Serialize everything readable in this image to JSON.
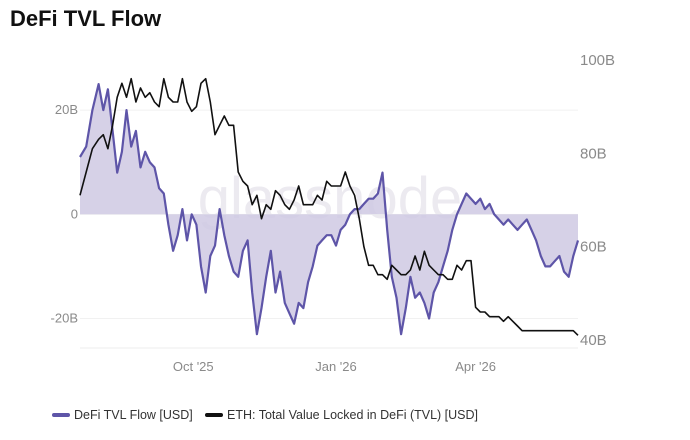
{
  "title": "DeFi TVL Flow",
  "watermark": "glassnode",
  "legend": {
    "flow_label": "DeFi TVL Flow [USD]",
    "tvl_label": "ETH: Total Value Locked in DeFi (TVL) [USD]"
  },
  "colors": {
    "flow": "#5e55a8",
    "flow_fill": "#cfc9e3",
    "tvl": "#111111"
  },
  "chart_data": {
    "type": "line",
    "title": "DeFi TVL Flow",
    "x_ticks": [
      "Oct '25",
      "Jan '26",
      "Apr '26"
    ],
    "y_left_ticks": [
      "20B",
      "0",
      "-20B"
    ],
    "y_left_values": [
      20,
      0,
      -20
    ],
    "y_left_range": [
      -27,
      30
    ],
    "y_right_ticks": [
      "100B",
      "80B",
      "60B",
      "40B"
    ],
    "y_right_values": [
      100,
      80,
      60,
      40
    ],
    "y_right_range": [
      40,
      100
    ],
    "units": "billion USD",
    "legend_position": "bottom",
    "series": [
      {
        "name": "DeFi TVL Flow [USD]",
        "axis": "left",
        "style": "area",
        "x": [
          "2025-07-20",
          "2025-07-24",
          "2025-07-28",
          "2025-08-01",
          "2025-08-04",
          "2025-08-07",
          "2025-08-10",
          "2025-08-13",
          "2025-08-16",
          "2025-08-19",
          "2025-08-22",
          "2025-08-25",
          "2025-08-28",
          "2025-08-31",
          "2025-09-03",
          "2025-09-06",
          "2025-09-09",
          "2025-09-12",
          "2025-09-15",
          "2025-09-18",
          "2025-09-21",
          "2025-09-24",
          "2025-09-27",
          "2025-09-30",
          "2025-10-03",
          "2025-10-06",
          "2025-10-09",
          "2025-10-12",
          "2025-10-15",
          "2025-10-18",
          "2025-10-21",
          "2025-10-24",
          "2025-10-27",
          "2025-10-30",
          "2025-11-02",
          "2025-11-05",
          "2025-11-08",
          "2025-11-11",
          "2025-11-14",
          "2025-11-17",
          "2025-11-20",
          "2025-11-23",
          "2025-11-26",
          "2025-11-29",
          "2025-12-02",
          "2025-12-05",
          "2025-12-08",
          "2025-12-11",
          "2025-12-14",
          "2025-12-17",
          "2025-12-20",
          "2025-12-23",
          "2025-12-26",
          "2025-12-29",
          "2026-01-01",
          "2026-01-04",
          "2026-01-07",
          "2026-01-10",
          "2026-01-13",
          "2026-01-16",
          "2026-01-19",
          "2026-01-22",
          "2026-01-25",
          "2026-01-28",
          "2026-01-31",
          "2026-02-03",
          "2026-02-06",
          "2026-02-09",
          "2026-02-12",
          "2026-02-15",
          "2026-02-18",
          "2026-02-21",
          "2026-02-24",
          "2026-02-27",
          "2026-03-02",
          "2026-03-05",
          "2026-03-08",
          "2026-03-11",
          "2026-03-14",
          "2026-03-17",
          "2026-03-20",
          "2026-03-23",
          "2026-03-26",
          "2026-03-29",
          "2026-04-01",
          "2026-04-04",
          "2026-04-07",
          "2026-04-10",
          "2026-04-13",
          "2026-04-16",
          "2026-04-19",
          "2026-04-22",
          "2026-04-25",
          "2026-04-28",
          "2026-05-01",
          "2026-05-04",
          "2026-05-07",
          "2026-05-10",
          "2026-05-13",
          "2026-05-16",
          "2026-05-19",
          "2026-05-22",
          "2026-05-25",
          "2026-05-28",
          "2026-05-31",
          "2026-06-03",
          "2026-06-06"
        ],
        "values": [
          11,
          13,
          20,
          25,
          20,
          24,
          16,
          8,
          12,
          20,
          13,
          16,
          9,
          12,
          10,
          9,
          5,
          4,
          -2,
          -7,
          -4,
          1,
          -5,
          0,
          -2,
          -10,
          -15,
          -8,
          -6,
          1,
          -4,
          -8,
          -11,
          -12,
          -7,
          -5,
          -15,
          -23,
          -18,
          -12,
          -7,
          -15,
          -11,
          -17,
          -19,
          -21,
          -17,
          -18,
          -13,
          -10,
          -6,
          -5,
          -4,
          -4,
          -6,
          -3,
          -2,
          0,
          1,
          1,
          2,
          3,
          3,
          4,
          8,
          -3,
          -12,
          -16,
          -23,
          -18,
          -12,
          -16,
          -15,
          -17,
          -20,
          -15,
          -13,
          -10,
          -7,
          -3,
          0,
          2,
          4,
          3,
          2,
          3,
          1,
          2,
          0,
          -1,
          -2,
          -1,
          -2,
          -3,
          -2,
          -1,
          -3,
          -5,
          -8,
          -10,
          -10,
          -9,
          -8,
          -11,
          -12,
          -8,
          -5
        ]
      },
      {
        "name": "ETH: Total Value Locked in DeFi (TVL) [USD]",
        "axis": "right",
        "style": "line",
        "x": [
          "2025-07-20",
          "2025-07-24",
          "2025-07-28",
          "2025-08-01",
          "2025-08-04",
          "2025-08-07",
          "2025-08-10",
          "2025-08-13",
          "2025-08-16",
          "2025-08-19",
          "2025-08-22",
          "2025-08-25",
          "2025-08-28",
          "2025-08-31",
          "2025-09-03",
          "2025-09-06",
          "2025-09-09",
          "2025-09-12",
          "2025-09-15",
          "2025-09-18",
          "2025-09-21",
          "2025-09-24",
          "2025-09-27",
          "2025-09-30",
          "2025-10-03",
          "2025-10-06",
          "2025-10-09",
          "2025-10-12",
          "2025-10-15",
          "2025-10-18",
          "2025-10-21",
          "2025-10-24",
          "2025-10-27",
          "2025-10-30",
          "2025-11-02",
          "2025-11-05",
          "2025-11-08",
          "2025-11-11",
          "2025-11-14",
          "2025-11-17",
          "2025-11-20",
          "2025-11-23",
          "2025-11-26",
          "2025-11-29",
          "2025-12-02",
          "2025-12-05",
          "2025-12-08",
          "2025-12-11",
          "2025-12-14",
          "2025-12-17",
          "2025-12-20",
          "2025-12-23",
          "2025-12-26",
          "2025-12-29",
          "2026-01-01",
          "2026-01-04",
          "2026-01-07",
          "2026-01-10",
          "2026-01-13",
          "2026-01-16",
          "2026-01-19",
          "2026-01-22",
          "2026-01-25",
          "2026-01-28",
          "2026-01-31",
          "2026-02-03",
          "2026-02-06",
          "2026-02-09",
          "2026-02-12",
          "2026-02-15",
          "2026-02-18",
          "2026-02-21",
          "2026-02-24",
          "2026-02-27",
          "2026-03-02",
          "2026-03-05",
          "2026-03-08",
          "2026-03-11",
          "2026-03-14",
          "2026-03-17",
          "2026-03-20",
          "2026-03-23",
          "2026-03-26",
          "2026-03-29",
          "2026-04-01",
          "2026-04-04",
          "2026-04-07",
          "2026-04-10",
          "2026-04-13",
          "2026-04-16",
          "2026-04-19",
          "2026-04-22",
          "2026-04-25",
          "2026-04-28",
          "2026-05-01",
          "2026-05-04",
          "2026-05-07",
          "2026-05-10",
          "2026-05-13",
          "2026-05-16",
          "2026-05-19",
          "2026-05-22",
          "2026-05-25",
          "2026-05-28",
          "2026-05-31",
          "2026-06-03",
          "2026-06-06"
        ],
        "values": [
          71,
          76,
          81,
          83,
          84,
          81,
          86,
          92,
          95,
          92,
          96,
          91,
          94,
          92,
          93,
          91,
          90,
          96,
          92,
          91,
          91,
          96,
          91,
          89,
          90,
          95,
          96,
          91,
          84,
          86,
          88,
          86,
          86,
          76,
          74,
          73,
          69,
          71,
          66,
          69,
          68,
          72,
          71,
          69,
          68,
          70,
          73,
          69,
          69,
          69,
          71,
          70,
          74,
          73,
          73,
          73,
          76,
          73,
          71,
          66,
          60,
          56,
          56,
          54,
          54,
          53,
          56,
          55,
          54,
          54,
          55,
          58,
          55,
          59,
          56,
          55,
          54,
          54,
          53,
          53,
          56,
          55,
          57,
          57,
          47,
          46,
          46,
          45,
          45,
          45,
          44,
          45,
          44,
          43,
          42,
          42,
          42,
          42,
          42,
          42,
          42,
          42,
          42,
          42,
          42,
          42,
          41
        ]
      }
    ]
  }
}
